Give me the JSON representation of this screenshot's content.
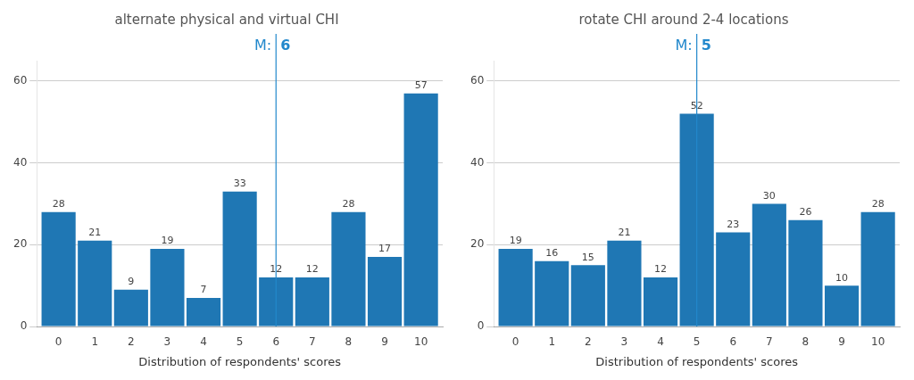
{
  "chart_data": [
    {
      "type": "bar",
      "title": "alternate physical and virtual CHI",
      "xlabel": "Distribution of respondents' scores",
      "x": [
        0,
        1,
        2,
        3,
        4,
        5,
        6,
        7,
        8,
        9,
        10
      ],
      "values": [
        28,
        21,
        9,
        19,
        7,
        33,
        12,
        12,
        28,
        17,
        57
      ],
      "color": "#1f77b4",
      "xlim": [
        -0.6,
        10.6
      ],
      "xticks": [
        0,
        1,
        2,
        3,
        4,
        5,
        6,
        7,
        8,
        9,
        10
      ],
      "ylim": [
        0,
        65
      ],
      "yticks": [
        0,
        20,
        40,
        60
      ],
      "grid": true,
      "data_labels": true,
      "annotations": [
        {
          "x": 6,
          "texts": [
            "M:",
            "6"
          ],
          "color": "#2288cc"
        }
      ]
    },
    {
      "type": "bar",
      "title": "rotate CHI around 2-4 locations",
      "xlabel": "Distribution of respondents' scores",
      "x": [
        0,
        1,
        2,
        3,
        4,
        5,
        6,
        7,
        8,
        9,
        10
      ],
      "values": [
        19,
        16,
        15,
        21,
        12,
        52,
        23,
        30,
        26,
        10,
        28
      ],
      "color": "#1f77b4",
      "xlim": [
        -0.6,
        10.6
      ],
      "xticks": [
        0,
        1,
        2,
        3,
        4,
        5,
        6,
        7,
        8,
        9,
        10
      ],
      "ylim": [
        0,
        65
      ],
      "yticks": [
        0,
        20,
        40,
        60
      ],
      "grid": true,
      "data_labels": true,
      "annotations": [
        {
          "x": 5,
          "texts": [
            "M:",
            "5"
          ],
          "color": "#2288cc"
        }
      ]
    }
  ]
}
